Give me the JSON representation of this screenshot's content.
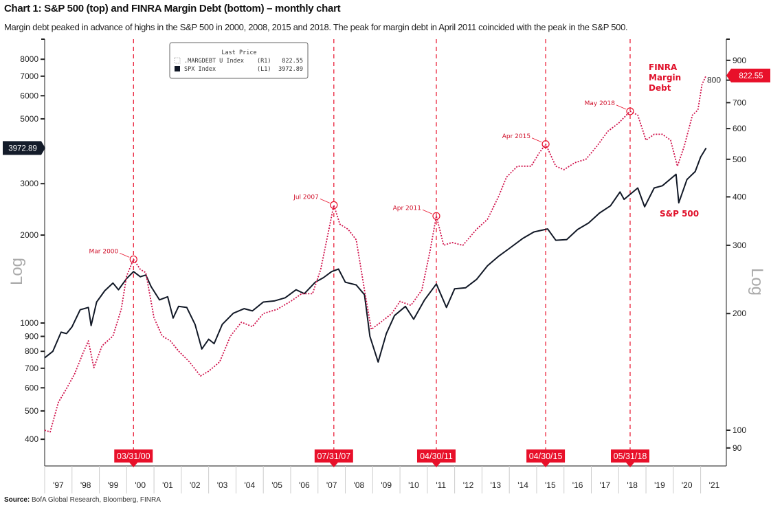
{
  "chart_data": {
    "type": "line",
    "title": "Chart 1: S&P 500 (top) and FINRA Margin Debt (bottom) – monthly chart",
    "subtitle": "Margin debt peaked in advance of highs in the S&P 500 in 2000, 2008, 2015 and 2018. The peak for margin debt in April 2011 coincided with the peak in the S&P 500.",
    "source_label": "Source:",
    "source": "BofA Global Research, Bloomberg, FINRA",
    "left_axis": {
      "label": "Log",
      "scale": "log",
      "range": [
        360,
        9000
      ],
      "ticks": [
        400,
        500,
        600,
        700,
        800,
        900,
        1000,
        2000,
        3000,
        5000,
        6000,
        7000,
        8000
      ],
      "last_value_label": "3972.89"
    },
    "right_axis": {
      "label": "Log",
      "scale": "log",
      "range": [
        84,
        1000
      ],
      "ticks": [
        90,
        100,
        200,
        300,
        400,
        500,
        600,
        700,
        800,
        900
      ],
      "last_value_label": "822.55"
    },
    "x_axis": {
      "range": [
        1997.0,
        2021.94
      ],
      "tick_labels": [
        "'97",
        "'98",
        "'99",
        "'00",
        "'01",
        "'02",
        "'03",
        "'04",
        "'05",
        "'06",
        "'07",
        "'08",
        "'09",
        "'10",
        "'11",
        "'12",
        "'13",
        "'14",
        "'15",
        "'16",
        "'17",
        "'18",
        "'19",
        "'20",
        "'21"
      ]
    },
    "legend": {
      "header": "Last Price",
      "entries": [
        {
          "name": ".MARGDEBT U Index",
          "axis": "(R1)",
          "value": "822.55",
          "color": "#d0104a",
          "style": "dotted"
        },
        {
          "name": "SPX Index",
          "axis": "(L1)",
          "value": "3972.89",
          "color": "#111826",
          "style": "solid"
        }
      ]
    },
    "series": [
      {
        "name": "SPX Index",
        "axis": "left",
        "color": "#111826",
        "x": [
          1997.0,
          1997.3,
          1997.6,
          1997.8,
          1998.0,
          1998.3,
          1998.6,
          1998.7,
          1998.9,
          1999.2,
          1999.5,
          1999.7,
          2000.0,
          2000.25,
          2000.5,
          2000.7,
          2000.9,
          2001.2,
          2001.5,
          2001.7,
          2001.9,
          2002.2,
          2002.5,
          2002.75,
          2003.0,
          2003.2,
          2003.5,
          2003.9,
          2004.3,
          2004.6,
          2005.0,
          2005.4,
          2005.8,
          2006.2,
          2006.5,
          2006.9,
          2007.2,
          2007.5,
          2007.75,
          2008.0,
          2008.4,
          2008.7,
          2008.9,
          2009.2,
          2009.5,
          2009.8,
          2010.2,
          2010.5,
          2010.9,
          2011.33,
          2011.7,
          2012.0,
          2012.4,
          2012.8,
          2013.2,
          2013.6,
          2014.0,
          2014.5,
          2014.9,
          2015.4,
          2015.7,
          2016.1,
          2016.5,
          2016.9,
          2017.3,
          2017.7,
          2018.05,
          2018.2,
          2018.7,
          2018.95,
          2019.3,
          2019.6,
          2020.1,
          2020.2,
          2020.5,
          2020.8,
          2021.0,
          2021.2
        ],
        "values": [
          760,
          800,
          930,
          920,
          970,
          1110,
          1130,
          980,
          1180,
          1290,
          1370,
          1300,
          1420,
          1500,
          1440,
          1460,
          1330,
          1200,
          1230,
          1040,
          1140,
          1130,
          990,
          815,
          880,
          850,
          990,
          1080,
          1120,
          1100,
          1180,
          1190,
          1220,
          1300,
          1260,
          1380,
          1430,
          1500,
          1530,
          1380,
          1350,
          1250,
          900,
          735,
          920,
          1060,
          1140,
          1030,
          1200,
          1360,
          1130,
          1310,
          1320,
          1410,
          1570,
          1690,
          1800,
          1950,
          2050,
          2100,
          1920,
          1930,
          2090,
          2200,
          2380,
          2520,
          2810,
          2650,
          2900,
          2500,
          2900,
          2950,
          3230,
          2580,
          3100,
          3300,
          3700,
          3973
        ]
      },
      {
        "name": ".MARGDEBT U Index",
        "axis": "right",
        "color": "#d0104a",
        "x": [
          1997.0,
          1997.2,
          1997.5,
          1997.8,
          1998.1,
          1998.4,
          1998.6,
          1998.8,
          1999.1,
          1999.5,
          1999.8,
          2000.0,
          2000.25,
          2000.5,
          2000.7,
          2001.0,
          2001.3,
          2001.6,
          2001.9,
          2002.3,
          2002.7,
          2003.0,
          2003.4,
          2003.8,
          2004.2,
          2004.6,
          2005.0,
          2005.5,
          2006.0,
          2006.4,
          2006.8,
          2007.1,
          2007.4,
          2007.58,
          2007.8,
          2008.1,
          2008.4,
          2008.7,
          2008.95,
          2009.3,
          2009.7,
          2010.0,
          2010.4,
          2010.8,
          2011.1,
          2011.33,
          2011.6,
          2011.9,
          2012.3,
          2012.8,
          2013.2,
          2013.6,
          2013.9,
          2014.3,
          2014.8,
          2015.1,
          2015.33,
          2015.7,
          2016.0,
          2016.4,
          2016.8,
          2017.2,
          2017.6,
          2018.0,
          2018.42,
          2018.7,
          2019.0,
          2019.3,
          2019.6,
          2019.9,
          2020.15,
          2020.4,
          2020.7,
          2020.9,
          2021.05,
          2021.2
        ],
        "values": [
          100,
          99,
          118,
          128,
          140,
          158,
          170,
          145,
          165,
          175,
          205,
          250,
          276,
          260,
          255,
          195,
          175,
          170,
          160,
          150,
          138,
          142,
          150,
          175,
          190,
          185,
          200,
          205,
          215,
          225,
          225,
          260,
          330,
          381,
          340,
          330,
          310,
          230,
          182,
          190,
          200,
          215,
          210,
          230,
          290,
          357,
          300,
          305,
          300,
          330,
          350,
          400,
          450,
          480,
          480,
          520,
          547,
          480,
          470,
          490,
          500,
          540,
          590,
          620,
          665,
          650,
          560,
          580,
          580,
          560,
          480,
          540,
          650,
          670,
          780,
          822.55
        ]
      }
    ],
    "annotations": [
      {
        "label": "Mar 2000",
        "x": 2000.25,
        "series": 1,
        "value": 276,
        "date_tag": "03/31/00"
      },
      {
        "label": "Jul 2007",
        "x": 2007.58,
        "series": 1,
        "value": 381,
        "date_tag": "07/31/07"
      },
      {
        "label": "Apr 2011",
        "x": 2011.33,
        "series": 1,
        "value": 357,
        "date_tag": "04/30/11"
      },
      {
        "label": "Apr 2015",
        "x": 2015.33,
        "series": 1,
        "value": 547,
        "date_tag": "04/30/15"
      },
      {
        "label": "May 2018",
        "x": 2018.42,
        "series": 1,
        "value": 665,
        "date_tag": "05/31/18"
      }
    ],
    "series_labels": [
      {
        "lines": [
          "FINRA",
          "Margin",
          "Debt"
        ],
        "color": "#e0102a"
      },
      {
        "lines": [
          "S&P 500"
        ],
        "color": "#e0102a"
      }
    ],
    "accent_color": "#e8102a"
  }
}
